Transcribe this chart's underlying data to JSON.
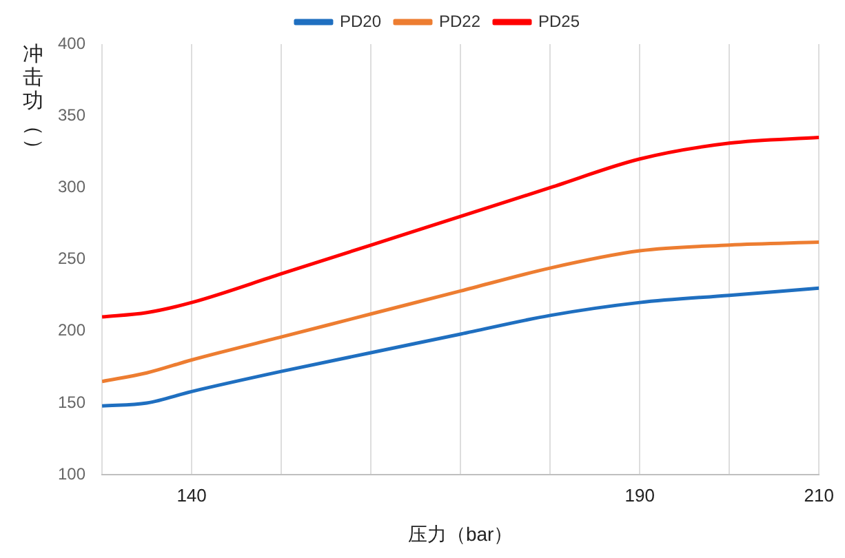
{
  "chart_data": {
    "type": "line",
    "xlabel": "压力（bar）",
    "ylabel": "冲击功（）",
    "legend": "top",
    "grid": "x",
    "marker": "none",
    "line_style": "solid",
    "xlim": [
      130,
      210
    ],
    "xticks": [
      {
        "value": 130,
        "label": null
      },
      140,
      {
        "value": 150,
        "label": null
      },
      {
        "value": 160,
        "label": null
      },
      {
        "value": 170,
        "label": null
      },
      {
        "value": 180,
        "label": null
      },
      190,
      {
        "value": 200,
        "label": null
      },
      210
    ],
    "ylim": [
      100,
      400
    ],
    "yticks": [
      100,
      150,
      200,
      250,
      300,
      350,
      400
    ],
    "x": [
      130,
      135,
      140,
      150,
      160,
      170,
      180,
      190,
      200,
      210
    ],
    "series": [
      {
        "name": "PD20",
        "color": "#1f6fc0",
        "values": [
          148,
          150,
          158,
          172,
          185,
          198,
          211,
          220,
          225,
          230
        ]
      },
      {
        "name": "PD22",
        "color": "#ed7d31",
        "values": [
          165,
          171,
          180,
          196,
          212,
          228,
          244,
          256,
          260,
          262
        ]
      },
      {
        "name": "PD25",
        "color": "#ff0000",
        "values": [
          210,
          213,
          220,
          240,
          260,
          280,
          300,
          320,
          331,
          335
        ]
      }
    ]
  }
}
